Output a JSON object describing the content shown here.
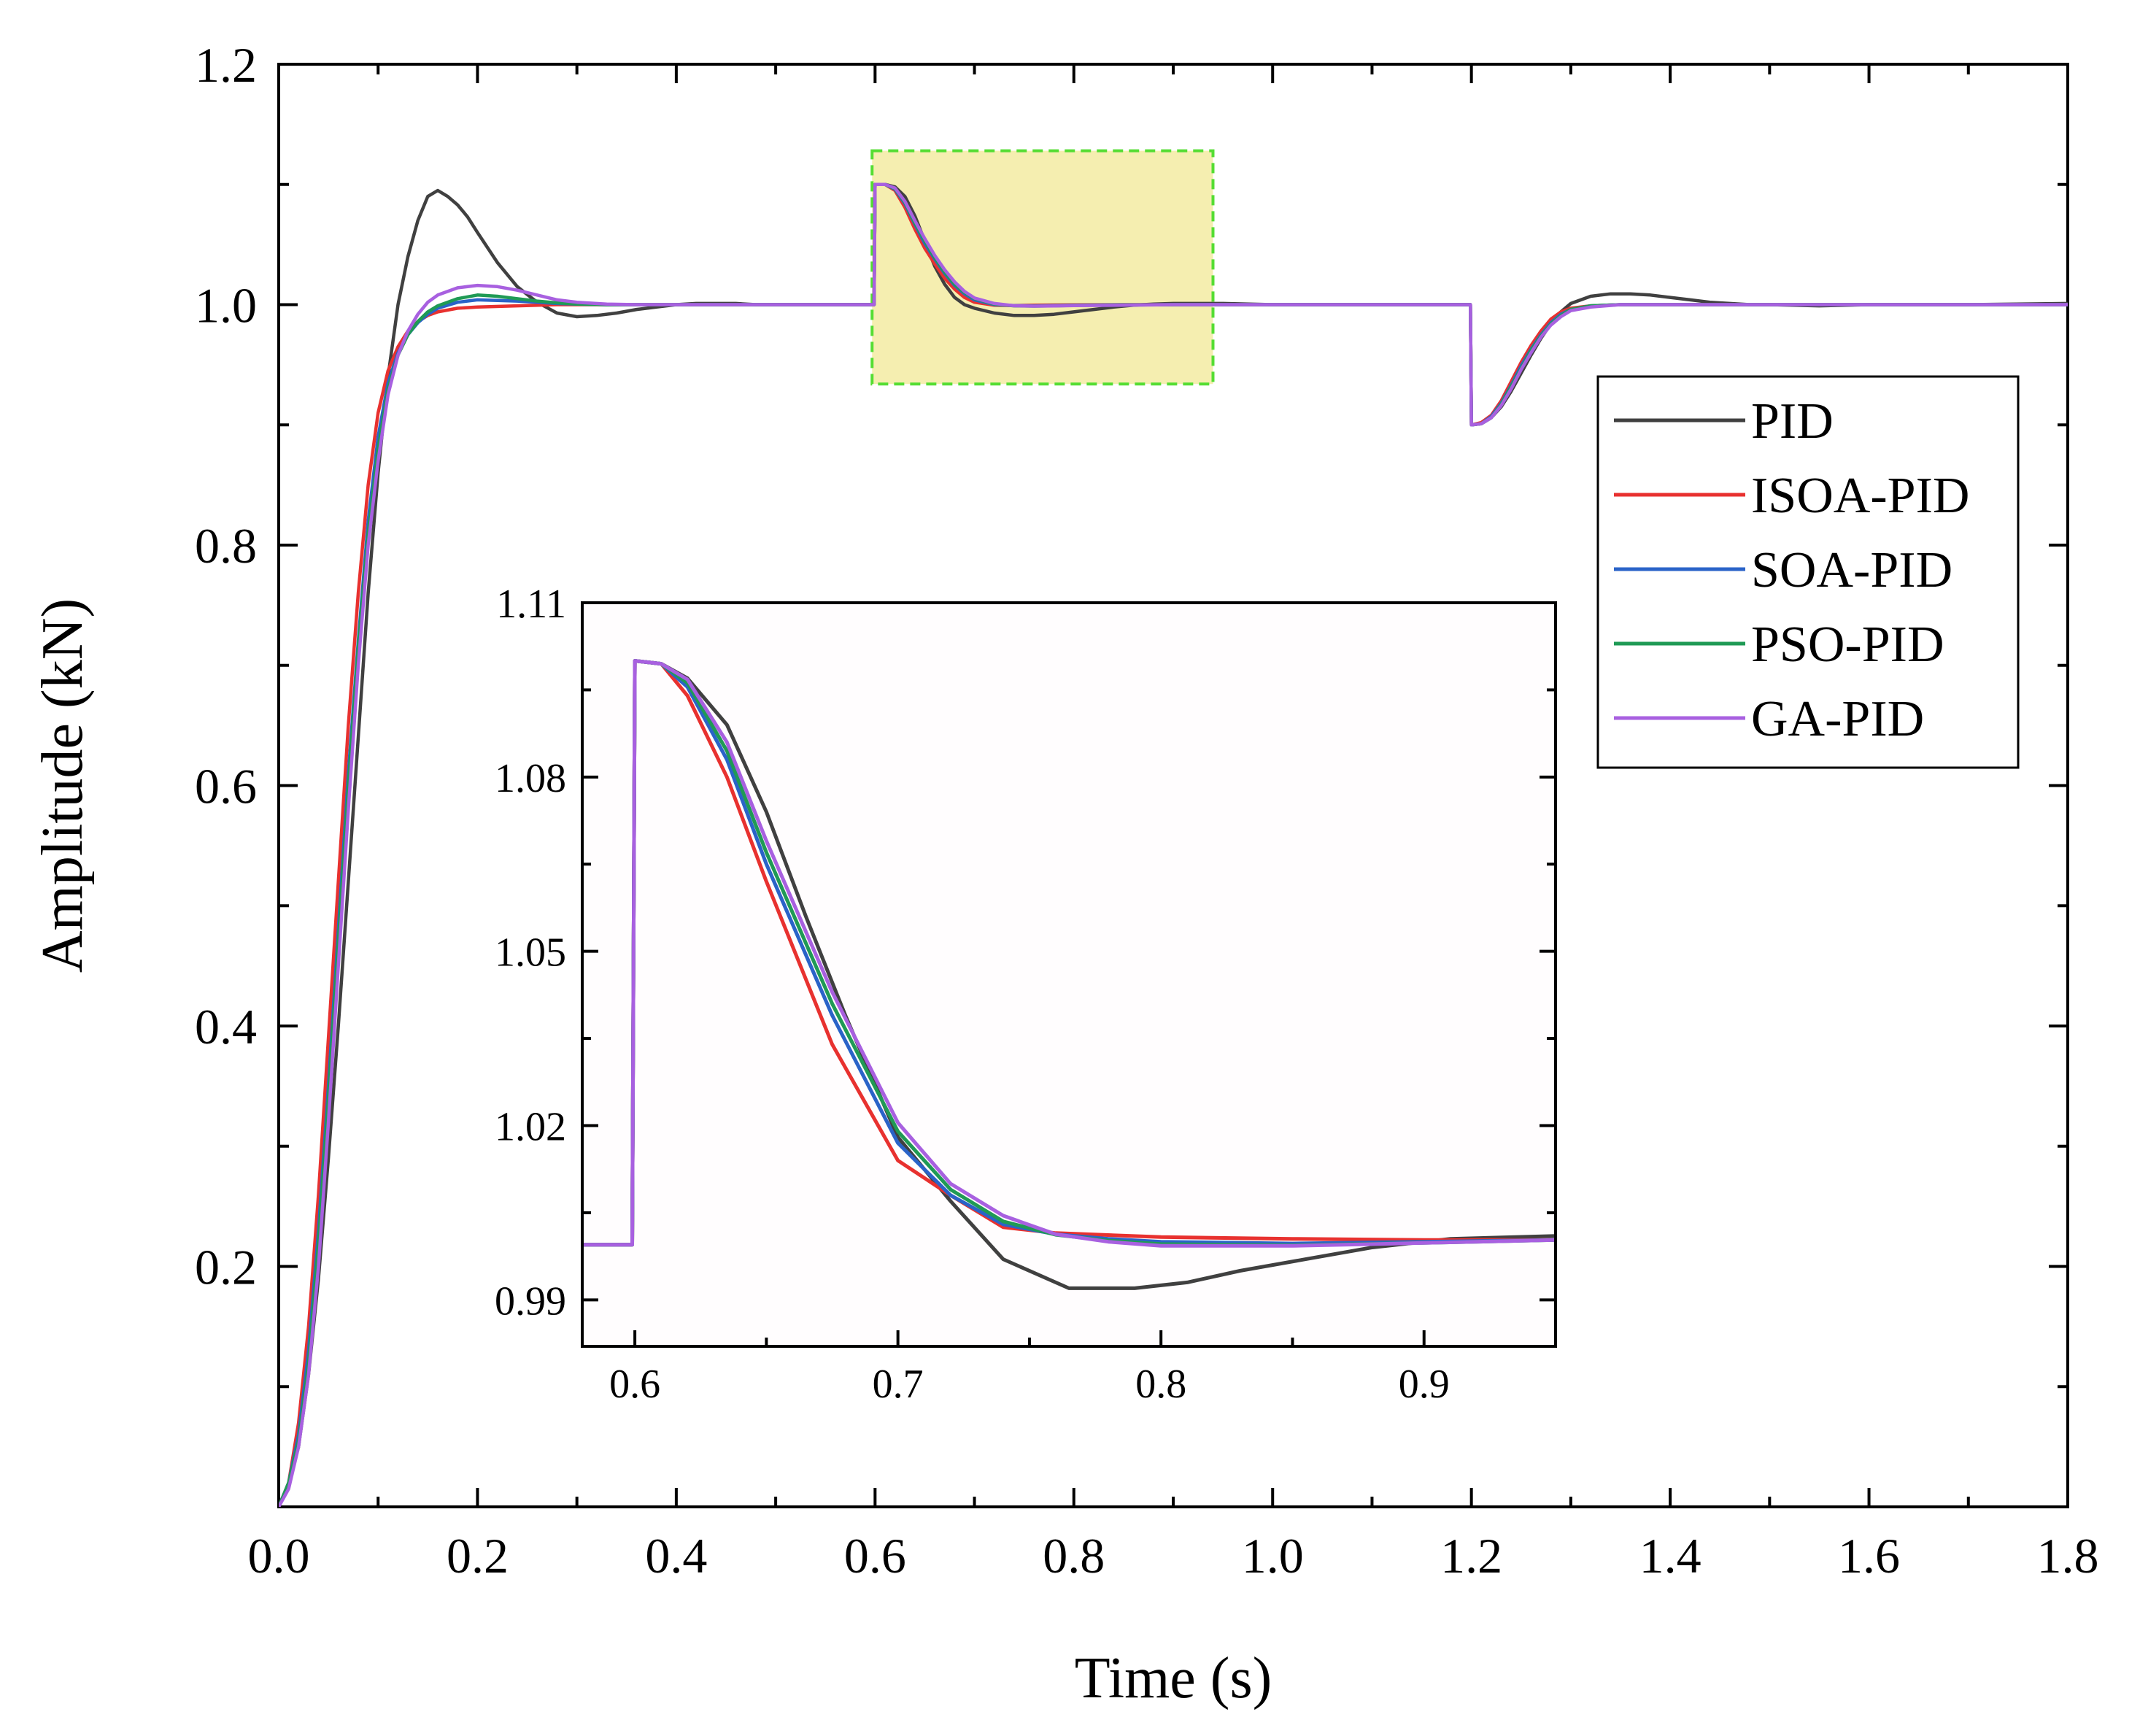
{
  "chart_data": [
    {
      "id": "main",
      "type": "line",
      "title": "",
      "xlabel": "Time (s)",
      "ylabel": "Amplitude (kN)",
      "xlim": [
        0,
        1.8
      ],
      "ylim": [
        0,
        1.2
      ],
      "xticks": [
        0.0,
        0.2,
        0.4,
        0.6,
        0.8,
        1.0,
        1.2,
        1.4,
        1.6,
        1.8
      ],
      "xtick_labels": [
        "0.0",
        "0.2",
        "0.4",
        "0.6",
        "0.8",
        "1.0",
        "1.2",
        "1.4",
        "1.6",
        "1.8"
      ],
      "yticks": [
        0.2,
        0.4,
        0.6,
        0.8,
        1.0,
        1.2
      ],
      "ytick_labels": [
        "0.2",
        "0.4",
        "0.6",
        "0.8",
        "1.0",
        "1.2"
      ],
      "legend_position": "right",
      "highlight_box": {
        "x": [
          0.597,
          0.94
        ],
        "y": [
          0.934,
          1.128
        ],
        "fill": "#f5eeb0",
        "stroke": "#55dd33"
      },
      "series": [
        {
          "name": "PID",
          "color": "#404040",
          "x": [
            0,
            0.01,
            0.02,
            0.03,
            0.04,
            0.05,
            0.06,
            0.07,
            0.08,
            0.09,
            0.1,
            0.11,
            0.12,
            0.13,
            0.14,
            0.15,
            0.16,
            0.17,
            0.18,
            0.19,
            0.2,
            0.22,
            0.24,
            0.26,
            0.28,
            0.3,
            0.32,
            0.34,
            0.36,
            0.38,
            0.4,
            0.42,
            0.44,
            0.46,
            0.48,
            0.5,
            0.55,
            0.599,
            0.6,
            0.61,
            0.62,
            0.63,
            0.64,
            0.65,
            0.66,
            0.67,
            0.68,
            0.69,
            0.7,
            0.72,
            0.74,
            0.76,
            0.78,
            0.8,
            0.82,
            0.84,
            0.86,
            0.88,
            0.9,
            0.92,
            0.95,
            1.0,
            1.1,
            1.199,
            1.2,
            1.21,
            1.22,
            1.23,
            1.24,
            1.25,
            1.26,
            1.27,
            1.28,
            1.29,
            1.3,
            1.32,
            1.34,
            1.36,
            1.38,
            1.4,
            1.42,
            1.44,
            1.46,
            1.48,
            1.5,
            1.55,
            1.6,
            1.7,
            1.8
          ],
          "y": [
            0,
            0.02,
            0.05,
            0.11,
            0.19,
            0.29,
            0.4,
            0.52,
            0.64,
            0.76,
            0.86,
            0.94,
            1.0,
            1.04,
            1.07,
            1.09,
            1.095,
            1.09,
            1.083,
            1.073,
            1.06,
            1.035,
            1.015,
            1.002,
            0.993,
            0.99,
            0.991,
            0.993,
            0.996,
            0.998,
            1.0,
            1.001,
            1.001,
            1.001,
            1.0,
            1.0,
            1.0,
            1.0,
            1.1,
            1.1,
            1.098,
            1.09,
            1.074,
            1.053,
            1.032,
            1.017,
            1.006,
            1.0,
            0.997,
            0.993,
            0.991,
            0.991,
            0.992,
            0.994,
            0.996,
            0.998,
            0.9995,
            1.0005,
            1.001,
            1.001,
            1.001,
            1.0,
            1.0,
            1.0,
            0.9,
            0.901,
            0.906,
            0.915,
            0.928,
            0.943,
            0.958,
            0.972,
            0.984,
            0.994,
            1.001,
            1.007,
            1.009,
            1.009,
            1.008,
            1.006,
            1.004,
            1.002,
            1.001,
            1.0,
            1.0,
            0.999,
            1.0,
            1.0,
            1.001
          ]
        },
        {
          "name": "ISOA-PID",
          "color": "#e8312f",
          "x": [
            0,
            0.01,
            0.02,
            0.03,
            0.04,
            0.05,
            0.06,
            0.07,
            0.08,
            0.09,
            0.1,
            0.11,
            0.12,
            0.13,
            0.14,
            0.15,
            0.16,
            0.18,
            0.2,
            0.24,
            0.28,
            0.32,
            0.36,
            0.4,
            0.5,
            0.599,
            0.6,
            0.61,
            0.62,
            0.63,
            0.64,
            0.65,
            0.66,
            0.67,
            0.68,
            0.69,
            0.7,
            0.72,
            0.74,
            0.76,
            0.78,
            0.8,
            0.85,
            0.9,
            1.0,
            1.199,
            1.2,
            1.21,
            1.22,
            1.23,
            1.24,
            1.25,
            1.26,
            1.27,
            1.28,
            1.29,
            1.3,
            1.32,
            1.35,
            1.4,
            1.5,
            1.8
          ],
          "y": [
            0,
            0.02,
            0.07,
            0.15,
            0.26,
            0.39,
            0.52,
            0.65,
            0.76,
            0.85,
            0.91,
            0.945,
            0.965,
            0.978,
            0.986,
            0.991,
            0.994,
            0.997,
            0.998,
            0.999,
            1.0,
            1.0,
            1.0,
            1.0,
            1.0,
            1.0,
            1.1,
            1.1,
            1.095,
            1.081,
            1.063,
            1.047,
            1.034,
            1.022,
            1.013,
            1.006,
            1.002,
            0.9995,
            0.9993,
            0.9995,
            0.9997,
            0.9998,
            1.0,
            1.0,
            1.0,
            1.0,
            0.9,
            0.902,
            0.908,
            0.92,
            0.936,
            0.952,
            0.966,
            0.978,
            0.988,
            0.994,
            0.997,
            0.999,
            1.0,
            1.0,
            1.0,
            1.0
          ]
        },
        {
          "name": "SOA-PID",
          "color": "#2a63c8",
          "x": [
            0,
            0.01,
            0.02,
            0.03,
            0.04,
            0.05,
            0.06,
            0.07,
            0.08,
            0.09,
            0.1,
            0.11,
            0.12,
            0.13,
            0.14,
            0.15,
            0.16,
            0.18,
            0.2,
            0.22,
            0.24,
            0.26,
            0.28,
            0.3,
            0.33,
            0.36,
            0.4,
            0.5,
            0.599,
            0.6,
            0.61,
            0.62,
            0.63,
            0.64,
            0.65,
            0.66,
            0.67,
            0.68,
            0.69,
            0.7,
            0.72,
            0.74,
            0.76,
            0.78,
            0.8,
            0.85,
            0.9,
            1.0,
            1.199,
            1.2,
            1.21,
            1.22,
            1.23,
            1.24,
            1.25,
            1.26,
            1.27,
            1.28,
            1.29,
            1.3,
            1.32,
            1.35,
            1.4,
            1.5,
            1.8
          ],
          "y": [
            0,
            0.02,
            0.06,
            0.13,
            0.23,
            0.35,
            0.48,
            0.61,
            0.72,
            0.82,
            0.89,
            0.935,
            0.96,
            0.975,
            0.985,
            0.992,
            0.997,
            1.002,
            1.004,
            1.0035,
            1.003,
            1.002,
            1.001,
            1.0005,
            1.0,
            1.0,
            1.0,
            1.0,
            1.0,
            1.1,
            1.1,
            1.096,
            1.084,
            1.067,
            1.051,
            1.038,
            1.026,
            1.016,
            1.009,
            1.004,
            1.0,
            0.9992,
            0.999,
            0.9992,
            0.9995,
            0.9998,
            1.0,
            1.0,
            1.0,
            0.9,
            0.901,
            0.907,
            0.918,
            0.933,
            0.949,
            0.963,
            0.975,
            0.985,
            0.992,
            0.996,
            0.999,
            1.0,
            1.0,
            1.0,
            1.0
          ]
        },
        {
          "name": "PSO-PID",
          "color": "#1f9a55",
          "x": [
            0,
            0.01,
            0.02,
            0.03,
            0.04,
            0.05,
            0.06,
            0.07,
            0.08,
            0.09,
            0.1,
            0.11,
            0.12,
            0.13,
            0.14,
            0.15,
            0.16,
            0.18,
            0.2,
            0.22,
            0.24,
            0.26,
            0.28,
            0.3,
            0.33,
            0.36,
            0.4,
            0.5,
            0.599,
            0.6,
            0.61,
            0.62,
            0.63,
            0.64,
            0.65,
            0.66,
            0.67,
            0.68,
            0.69,
            0.7,
            0.72,
            0.74,
            0.76,
            0.78,
            0.8,
            0.85,
            0.9,
            1.0,
            1.199,
            1.2,
            1.21,
            1.22,
            1.23,
            1.24,
            1.25,
            1.26,
            1.27,
            1.28,
            1.29,
            1.3,
            1.32,
            1.35,
            1.4,
            1.5,
            1.8
          ],
          "y": [
            0,
            0.02,
            0.055,
            0.12,
            0.22,
            0.34,
            0.47,
            0.6,
            0.715,
            0.81,
            0.88,
            0.93,
            0.958,
            0.975,
            0.986,
            0.994,
            0.999,
            1.005,
            1.008,
            1.007,
            1.005,
            1.003,
            1.0015,
            1.0005,
            1.0,
            1.0,
            1.0,
            1.0,
            1.0,
            1.1,
            1.1,
            1.0965,
            1.085,
            1.068,
            1.053,
            1.039,
            1.027,
            1.017,
            1.01,
            1.005,
            1.0005,
            0.999,
            0.9988,
            0.999,
            0.9994,
            0.9997,
            1.0,
            1.0,
            1.0,
            0.9,
            0.901,
            0.906,
            0.917,
            0.932,
            0.947,
            0.962,
            0.974,
            0.984,
            0.991,
            0.996,
            0.999,
            1.0,
            1.0,
            1.0,
            1.0
          ]
        },
        {
          "name": "GA-PID",
          "color": "#a860e0",
          "x": [
            0,
            0.01,
            0.02,
            0.03,
            0.04,
            0.05,
            0.06,
            0.07,
            0.08,
            0.09,
            0.1,
            0.11,
            0.12,
            0.13,
            0.14,
            0.15,
            0.16,
            0.18,
            0.2,
            0.22,
            0.24,
            0.26,
            0.28,
            0.3,
            0.33,
            0.36,
            0.4,
            0.5,
            0.599,
            0.6,
            0.61,
            0.62,
            0.63,
            0.64,
            0.65,
            0.66,
            0.67,
            0.68,
            0.69,
            0.7,
            0.72,
            0.74,
            0.76,
            0.78,
            0.8,
            0.85,
            0.9,
            1.0,
            1.199,
            1.2,
            1.21,
            1.22,
            1.23,
            1.24,
            1.25,
            1.26,
            1.27,
            1.28,
            1.29,
            1.3,
            1.32,
            1.35,
            1.4,
            1.5,
            1.8
          ],
          "y": [
            0,
            0.015,
            0.05,
            0.11,
            0.2,
            0.32,
            0.45,
            0.58,
            0.7,
            0.8,
            0.87,
            0.925,
            0.958,
            0.978,
            0.992,
            1.002,
            1.008,
            1.014,
            1.016,
            1.015,
            1.012,
            1.008,
            1.004,
            1.002,
            1.0005,
            1.0,
            1.0,
            1.0,
            1.0,
            1.1,
            1.1,
            1.097,
            1.086,
            1.07,
            1.055,
            1.041,
            1.029,
            1.019,
            1.011,
            1.0055,
            1.001,
            0.9991,
            0.9988,
            0.9989,
            0.9992,
            0.9996,
            1.0,
            1.0,
            1.0,
            0.9,
            0.901,
            0.906,
            0.916,
            0.93,
            0.946,
            0.96,
            0.973,
            0.983,
            0.99,
            0.995,
            0.998,
            1.0,
            1.0,
            1.0,
            1.0
          ]
        }
      ]
    },
    {
      "id": "inset",
      "type": "line",
      "title": "",
      "xlabel": "",
      "ylabel": "",
      "xlim": [
        0.58,
        0.95
      ],
      "ylim": [
        0.982,
        1.11
      ],
      "xticks": [
        0.6,
        0.7,
        0.8,
        0.9
      ],
      "xtick_labels": [
        "0.6",
        "0.7",
        "0.8",
        "0.9"
      ],
      "yticks": [
        0.99,
        1.02,
        1.05,
        1.08,
        1.11
      ],
      "ytick_labels": [
        "0.99",
        "1.02",
        "1.05",
        "1.08",
        "1.11"
      ],
      "series": [
        {
          "name": "PID",
          "color": "#404040",
          "x": [
            0.58,
            0.599,
            0.6,
            0.61,
            0.62,
            0.635,
            0.65,
            0.665,
            0.68,
            0.7,
            0.72,
            0.74,
            0.765,
            0.79,
            0.81,
            0.83,
            0.855,
            0.88,
            0.91,
            0.95
          ],
          "y": [
            0.9995,
            0.9995,
            1.1,
            1.0995,
            1.097,
            1.089,
            1.074,
            1.056,
            1.039,
            1.018,
            1.007,
            0.997,
            0.992,
            0.992,
            0.993,
            0.995,
            0.997,
            0.999,
            1.0005,
            1.001
          ]
        },
        {
          "name": "ISOA-PID",
          "color": "#e8312f",
          "x": [
            0.58,
            0.599,
            0.6,
            0.61,
            0.62,
            0.635,
            0.65,
            0.675,
            0.7,
            0.72,
            0.74,
            0.76,
            0.8,
            0.85,
            0.9,
            0.95
          ],
          "y": [
            0.9995,
            0.9995,
            1.1,
            1.0995,
            1.094,
            1.08,
            1.062,
            1.034,
            1.014,
            1.008,
            1.0025,
            1.0015,
            1.0008,
            1.0005,
            1.0003,
            1.0003
          ]
        },
        {
          "name": "SOA-PID",
          "color": "#2a63c8",
          "x": [
            0.58,
            0.599,
            0.6,
            0.61,
            0.62,
            0.635,
            0.65,
            0.675,
            0.7,
            0.72,
            0.74,
            0.76,
            0.78,
            0.8,
            0.85,
            0.9,
            0.95
          ],
          "y": [
            0.9995,
            0.9995,
            1.1,
            1.0995,
            1.0955,
            1.083,
            1.065,
            1.039,
            1.017,
            1.008,
            1.003,
            1.0013,
            1.0005,
            1.0,
            0.9997,
            1.0,
            1.0003
          ]
        },
        {
          "name": "PSO-PID",
          "color": "#1f9a55",
          "x": [
            0.58,
            0.599,
            0.6,
            0.61,
            0.62,
            0.635,
            0.65,
            0.675,
            0.7,
            0.72,
            0.74,
            0.76,
            0.78,
            0.8,
            0.85,
            0.9,
            0.95
          ],
          "y": [
            0.9995,
            0.9995,
            1.1,
            1.0995,
            1.0962,
            1.0845,
            1.067,
            1.041,
            1.019,
            1.009,
            1.0035,
            1.0012,
            1.0002,
            0.9996,
            0.9994,
            0.9998,
            1.0003
          ]
        },
        {
          "name": "GA-PID",
          "color": "#a860e0",
          "x": [
            0.58,
            0.599,
            0.6,
            0.61,
            0.62,
            0.635,
            0.65,
            0.675,
            0.7,
            0.72,
            0.74,
            0.76,
            0.78,
            0.8,
            0.85,
            0.9,
            0.95
          ],
          "y": [
            0.9995,
            0.9995,
            1.1,
            1.0995,
            1.0968,
            1.086,
            1.069,
            1.043,
            1.0205,
            1.01,
            1.0045,
            1.0013,
            1.0,
            0.9993,
            0.9993,
            0.9998,
            1.0003
          ]
        }
      ]
    }
  ]
}
